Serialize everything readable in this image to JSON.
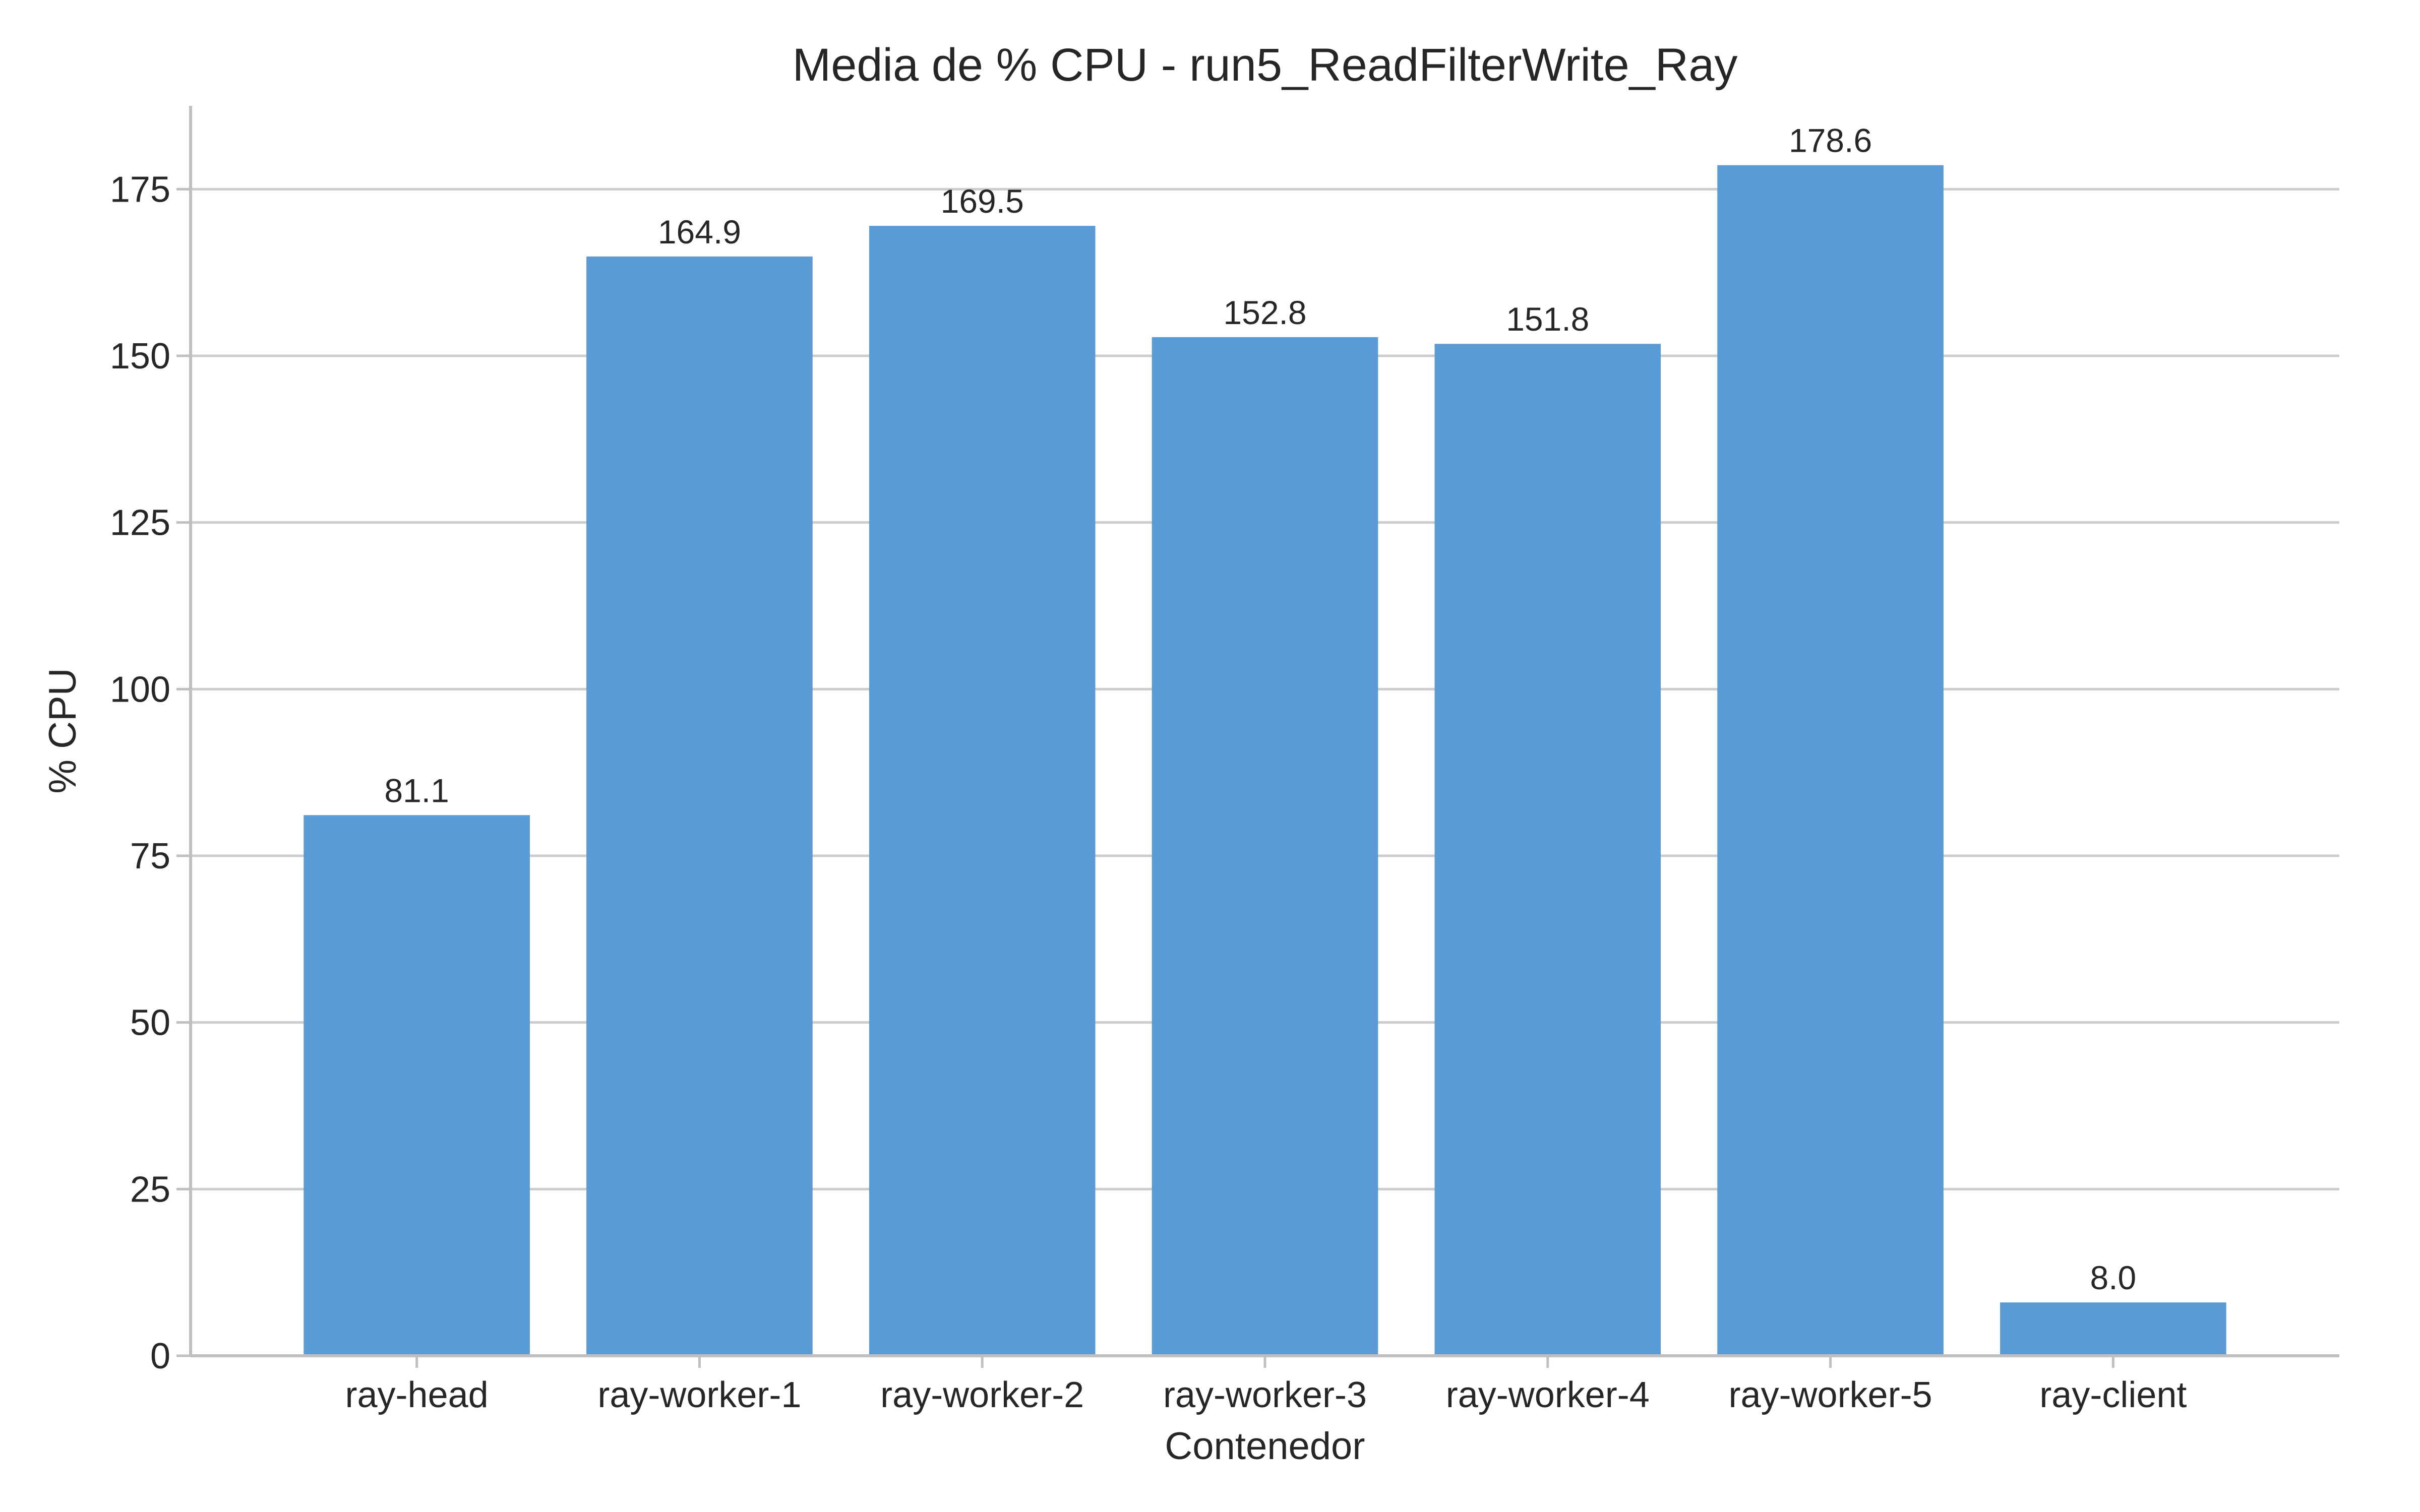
{
  "chart_data": {
    "type": "bar",
    "title": "Media de % CPU - run5_ReadFilterWrite_Ray",
    "xlabel": "Contenedor",
    "ylabel": "% CPU",
    "categories": [
      "ray-head",
      "ray-worker-1",
      "ray-worker-2",
      "ray-worker-3",
      "ray-worker-4",
      "ray-worker-5",
      "ray-client"
    ],
    "values": [
      81.1,
      164.9,
      169.5,
      152.8,
      151.8,
      178.6,
      8.0
    ],
    "data_labels": [
      "81.1",
      "164.9",
      "169.5",
      "152.8",
      "151.8",
      "178.6",
      "8.0"
    ],
    "ylim": [
      0,
      187.5
    ],
    "yticks": [
      0,
      25,
      50,
      75,
      100,
      125,
      150,
      175
    ],
    "grid": "horizontal",
    "legend": "none",
    "bar_color": "#5b9bd5"
  }
}
